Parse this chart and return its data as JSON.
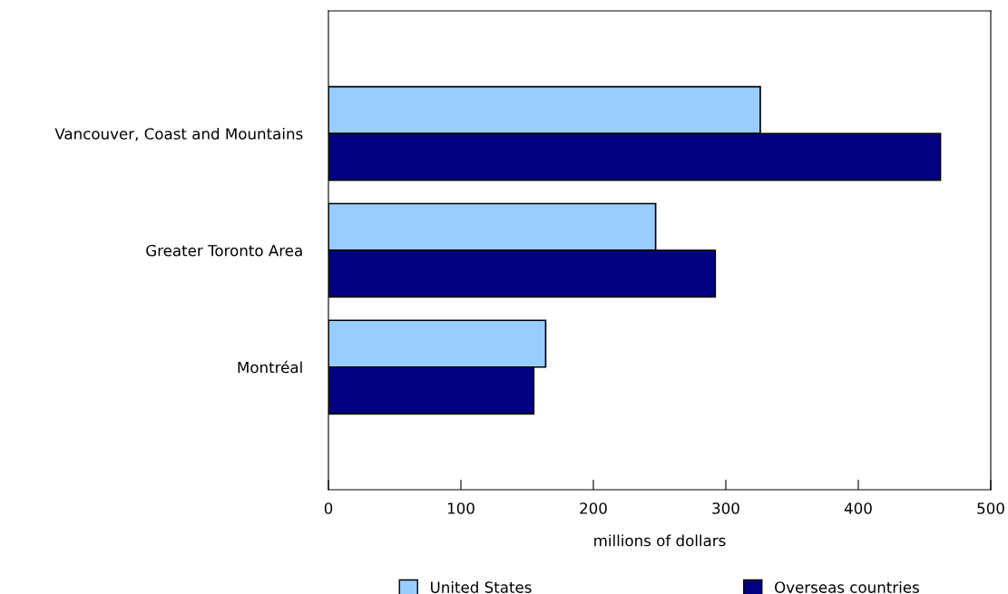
{
  "chart_data": {
    "type": "bar",
    "orientation": "horizontal",
    "xlabel": "millions of dollars",
    "categories": [
      "Vancouver, Coast and Mountains",
      "Greater Toronto Area",
      "Montréal"
    ],
    "series": [
      {
        "name": "United States",
        "color": "#99ccff",
        "values": [
          326,
          247,
          164
        ]
      },
      {
        "name": "Overseas countries",
        "color": "#000080",
        "values": [
          462,
          292,
          155
        ]
      }
    ],
    "xlim": [
      0,
      500
    ],
    "xticks": [
      0,
      100,
      200,
      300,
      400,
      500
    ],
    "grid": false,
    "legend": "bottom"
  }
}
